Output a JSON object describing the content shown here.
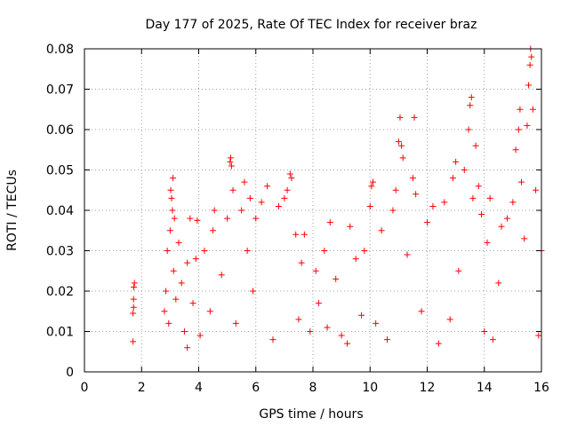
{
  "chart_data": {
    "type": "scatter",
    "title": "Day 177 of 2025, Rate Of TEC Index for receiver braz",
    "xlabel": "GPS time / hours",
    "ylabel": "ROTI / TECUs",
    "xlim": [
      0,
      16
    ],
    "ylim": [
      0,
      0.08
    ],
    "x_ticks": [
      "0",
      "2",
      "4",
      "6",
      "8",
      "10",
      "12",
      "14",
      "16"
    ],
    "y_ticks": [
      "0",
      "0.01",
      "0.02",
      "0.03",
      "0.04",
      "0.05",
      "0.06",
      "0.07",
      "0.08"
    ],
    "grid": true,
    "grid_style": "dotted",
    "marker": "plus",
    "series": [
      {
        "color": "#ff0000",
        "points": [
          [
            1.7,
            0.0075
          ],
          [
            1.7,
            0.0145
          ],
          [
            1.72,
            0.016
          ],
          [
            1.72,
            0.018
          ],
          [
            1.73,
            0.021
          ],
          [
            1.75,
            0.022
          ],
          [
            2.8,
            0.015
          ],
          [
            2.85,
            0.02
          ],
          [
            2.9,
            0.03
          ],
          [
            2.95,
            0.012
          ],
          [
            3.0,
            0.035
          ],
          [
            3.02,
            0.045
          ],
          [
            3.05,
            0.043
          ],
          [
            3.08,
            0.04
          ],
          [
            3.1,
            0.048
          ],
          [
            3.12,
            0.025
          ],
          [
            3.15,
            0.038
          ],
          [
            3.2,
            0.018
          ],
          [
            3.3,
            0.032
          ],
          [
            3.4,
            0.022
          ],
          [
            3.5,
            0.01
          ],
          [
            3.6,
            0.027
          ],
          [
            3.6,
            0.006
          ],
          [
            3.7,
            0.038
          ],
          [
            3.8,
            0.017
          ],
          [
            3.9,
            0.028
          ],
          [
            3.95,
            0.0375
          ],
          [
            4.05,
            0.009
          ],
          [
            4.2,
            0.03
          ],
          [
            4.4,
            0.015
          ],
          [
            4.5,
            0.035
          ],
          [
            4.55,
            0.04
          ],
          [
            4.8,
            0.024
          ],
          [
            5.0,
            0.038
          ],
          [
            5.1,
            0.052
          ],
          [
            5.12,
            0.053
          ],
          [
            5.15,
            0.051
          ],
          [
            5.2,
            0.045
          ],
          [
            5.3,
            0.012
          ],
          [
            5.5,
            0.04
          ],
          [
            5.6,
            0.047
          ],
          [
            5.7,
            0.03
          ],
          [
            5.8,
            0.043
          ],
          [
            5.9,
            0.02
          ],
          [
            6.0,
            0.038
          ],
          [
            6.2,
            0.042
          ],
          [
            6.4,
            0.046
          ],
          [
            6.6,
            0.008
          ],
          [
            6.8,
            0.041
          ],
          [
            7.0,
            0.043
          ],
          [
            7.1,
            0.045
          ],
          [
            7.2,
            0.049
          ],
          [
            7.25,
            0.048
          ],
          [
            7.4,
            0.034
          ],
          [
            7.5,
            0.013
          ],
          [
            7.6,
            0.027
          ],
          [
            7.7,
            0.034
          ],
          [
            7.9,
            0.01
          ],
          [
            8.1,
            0.025
          ],
          [
            8.2,
            0.017
          ],
          [
            8.4,
            0.03
          ],
          [
            8.5,
            0.011
          ],
          [
            8.6,
            0.037
          ],
          [
            8.8,
            0.023
          ],
          [
            9.0,
            0.009
          ],
          [
            9.2,
            0.007
          ],
          [
            9.3,
            0.036
          ],
          [
            9.5,
            0.028
          ],
          [
            9.7,
            0.014
          ],
          [
            9.8,
            0.03
          ],
          [
            10.0,
            0.041
          ],
          [
            10.05,
            0.046
          ],
          [
            10.1,
            0.047
          ],
          [
            10.2,
            0.012
          ],
          [
            10.4,
            0.035
          ],
          [
            10.6,
            0.008
          ],
          [
            10.8,
            0.04
          ],
          [
            10.9,
            0.045
          ],
          [
            11.0,
            0.057
          ],
          [
            11.05,
            0.063
          ],
          [
            11.1,
            0.056
          ],
          [
            11.15,
            0.053
          ],
          [
            11.3,
            0.029
          ],
          [
            11.5,
            0.048
          ],
          [
            11.55,
            0.063
          ],
          [
            11.6,
            0.044
          ],
          [
            11.8,
            0.015
          ],
          [
            12.0,
            0.037
          ],
          [
            12.2,
            0.041
          ],
          [
            12.4,
            0.007
          ],
          [
            12.6,
            0.042
          ],
          [
            12.8,
            0.013
          ],
          [
            12.9,
            0.048
          ],
          [
            13.0,
            0.052
          ],
          [
            13.1,
            0.025
          ],
          [
            13.3,
            0.05
          ],
          [
            13.45,
            0.06
          ],
          [
            13.5,
            0.066
          ],
          [
            13.55,
            0.068
          ],
          [
            13.6,
            0.043
          ],
          [
            13.7,
            0.056
          ],
          [
            13.8,
            0.046
          ],
          [
            13.9,
            0.039
          ],
          [
            14.0,
            0.01
          ],
          [
            14.1,
            0.032
          ],
          [
            14.2,
            0.043
          ],
          [
            14.3,
            0.008
          ],
          [
            14.5,
            0.022
          ],
          [
            14.6,
            0.036
          ],
          [
            14.8,
            0.038
          ],
          [
            15.0,
            0.042
          ],
          [
            15.1,
            0.055
          ],
          [
            15.2,
            0.06
          ],
          [
            15.25,
            0.065
          ],
          [
            15.3,
            0.047
          ],
          [
            15.4,
            0.033
          ],
          [
            15.5,
            0.061
          ],
          [
            15.55,
            0.071
          ],
          [
            15.6,
            0.076
          ],
          [
            15.62,
            0.08
          ],
          [
            15.65,
            0.078
          ],
          [
            15.7,
            0.065
          ],
          [
            15.8,
            0.045
          ],
          [
            15.9,
            0.009
          ],
          [
            16.0,
            0.03
          ]
        ]
      }
    ]
  }
}
